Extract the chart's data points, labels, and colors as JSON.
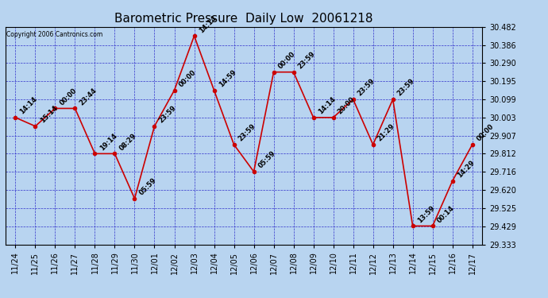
{
  "title": "Barometric Pressure  Daily Low  20061218",
  "copyright": "Copyright 2006 Cantronics.com",
  "background_color": "#b8d4f0",
  "plot_bg_color": "#b8d4f0",
  "line_color": "#cc0000",
  "marker_color": "#cc0000",
  "grid_color": "#3333cc",
  "text_color": "#000000",
  "ylim": [
    29.333,
    30.482
  ],
  "yticks": [
    29.333,
    29.429,
    29.525,
    29.62,
    29.716,
    29.812,
    29.907,
    30.003,
    30.099,
    30.195,
    30.29,
    30.386,
    30.482
  ],
  "dates": [
    "11/24",
    "11/25",
    "11/26",
    "11/27",
    "11/28",
    "11/29",
    "11/30",
    "12/01",
    "12/02",
    "12/03",
    "12/04",
    "12/05",
    "12/06",
    "12/07",
    "12/08",
    "12/09",
    "12/10",
    "12/11",
    "12/12",
    "12/13",
    "12/14",
    "12/15",
    "12/16",
    "12/17"
  ],
  "values": [
    30.003,
    29.957,
    30.051,
    30.051,
    29.812,
    29.812,
    29.575,
    29.957,
    30.147,
    30.434,
    30.147,
    29.86,
    29.717,
    30.243,
    30.243,
    30.003,
    30.003,
    30.099,
    29.86,
    30.099,
    29.43,
    29.43,
    29.668,
    29.86
  ],
  "annotations": [
    "14:14",
    "15:14",
    "00:00",
    "23:44",
    "19:14",
    "08:29",
    "05:59",
    "23:59",
    "00:00",
    "14:14",
    "14:59",
    "23:59",
    "05:59",
    "00:00",
    "23:59",
    "14:14",
    "20:00",
    "23:59",
    "21:29",
    "23:59",
    "13:59",
    "00:14",
    "14:29",
    "00:00"
  ],
  "title_fontsize": 11,
  "annot_fontsize": 6,
  "tick_fontsize": 7,
  "copyright_fontsize": 5.5
}
